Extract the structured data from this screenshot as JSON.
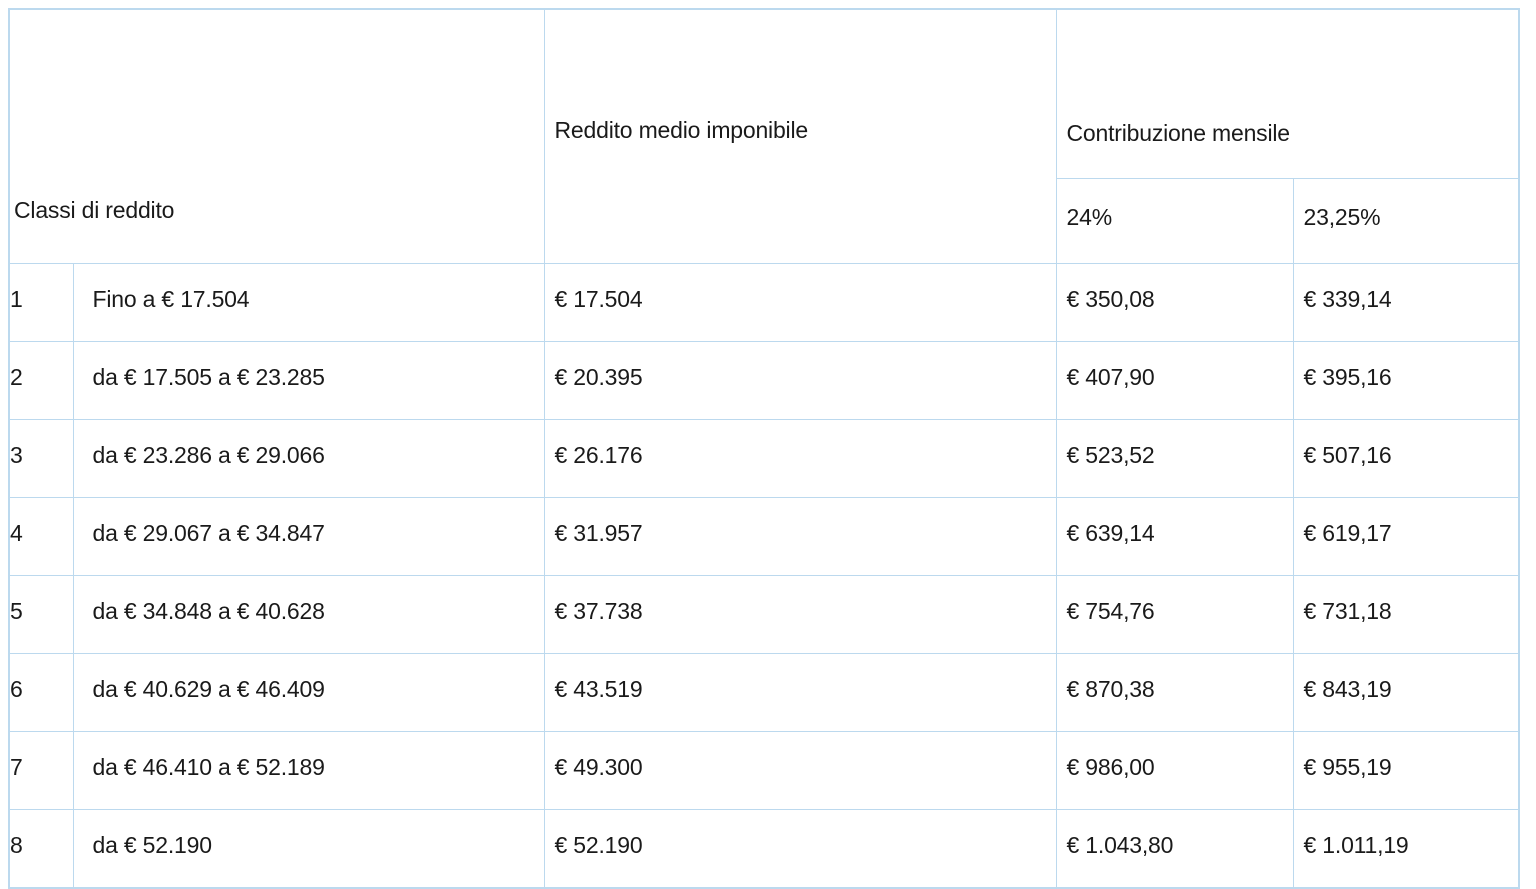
{
  "table": {
    "header": {
      "classi_di_reddito": "Classi di reddito",
      "reddito_medio_imponibile": "Reddito medio imponibile",
      "contribuzione_mensile": "Contribuzione mensile",
      "aliquota_24": "24%",
      "aliquota_23_25": "23,25%"
    },
    "rows": [
      {
        "numero": "1",
        "classe": "Fino a € 17.504",
        "reddito_medio": "€ 17.504",
        "contributo_24": "€ 350,08",
        "contributo_23_25": "€ 339,14"
      },
      {
        "numero": "2",
        "classe": "da € 17.505 a € 23.285",
        "reddito_medio": "€ 20.395",
        "contributo_24": "€ 407,90",
        "contributo_23_25": "€ 395,16"
      },
      {
        "numero": "3",
        "classe": "da € 23.286 a € 29.066",
        "reddito_medio": "€ 26.176",
        "contributo_24": "€ 523,52",
        "contributo_23_25": "€ 507,16"
      },
      {
        "numero": "4",
        "classe": "da € 29.067 a € 34.847",
        "reddito_medio": "€ 31.957",
        "contributo_24": "€ 639,14",
        "contributo_23_25": "€ 619,17"
      },
      {
        "numero": "5",
        "classe": "da € 34.848 a € 40.628",
        "reddito_medio": "€ 37.738",
        "contributo_24": "€ 754,76",
        "contributo_23_25": "€ 731,18"
      },
      {
        "numero": "6",
        "classe": "da € 40.629 a € 46.409",
        "reddito_medio": "€ 43.519",
        "contributo_24": "€ 870,38",
        "contributo_23_25": "€ 843,19"
      },
      {
        "numero": "7",
        "classe": "da € 46.410 a € 52.189",
        "reddito_medio": "€ 49.300",
        "contributo_24": "€ 986,00",
        "contributo_23_25": "€ 955,19"
      },
      {
        "numero": "8",
        "classe": "da € 52.190",
        "reddito_medio": "€ 52.190",
        "contributo_24": "€ 1.043,80",
        "contributo_23_25": "€ 1.011,19"
      }
    ],
    "colors": {
      "border": "#bcd9ee",
      "text": "#1a1a1a",
      "background": "#ffffff"
    }
  }
}
